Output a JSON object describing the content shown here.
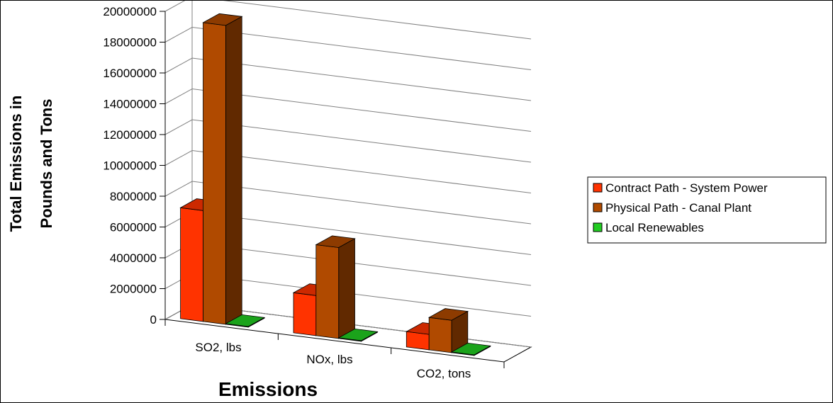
{
  "chart_data": {
    "type": "bar",
    "title": "",
    "xlabel": "Emissions",
    "ylabel": [
      "Total Emissions in",
      "Pounds and Tons"
    ],
    "categories": [
      "SO2, lbs",
      "NOx, lbs",
      "CO2, tons"
    ],
    "ylim": [
      0,
      20000000
    ],
    "yticks": [
      0,
      2000000,
      4000000,
      6000000,
      8000000,
      10000000,
      12000000,
      14000000,
      16000000,
      18000000,
      20000000
    ],
    "grid": true,
    "legend": "right",
    "series": [
      {
        "name": "Contract Path - System Power",
        "color": "#ff3300",
        "values": [
          7200000,
          2600000,
          1000000
        ]
      },
      {
        "name": "Physical Path - Canal Plant",
        "color": "#b04a00",
        "values": [
          19400000,
          5900000,
          2100000
        ]
      },
      {
        "name": "Local Renewables",
        "color": "#22cc22",
        "values": [
          0,
          0,
          0
        ]
      }
    ]
  }
}
